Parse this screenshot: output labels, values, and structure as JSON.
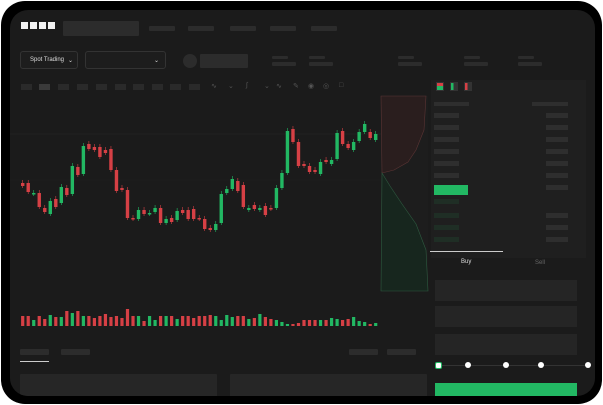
{
  "header": {
    "logo": "OKX"
  },
  "toolbar": {
    "market_select": "Spot Trading",
    "market_chevron": "chevron-down-icon",
    "pair_chevron": "chevron-down-icon"
  },
  "colors": {
    "up": "#22b863",
    "down": "#d64045",
    "background": "#1b1b1b"
  },
  "chart": {
    "candles": [
      [
        68,
        65
      ],
      [
        68,
        59
      ],
      [
        57,
        58
      ],
      [
        58,
        44
      ],
      [
        43,
        39
      ],
      [
        37,
        50
      ],
      [
        52,
        44
      ],
      [
        48,
        64
      ],
      [
        63,
        56
      ],
      [
        57,
        85
      ],
      [
        84,
        76
      ],
      [
        77,
        105
      ],
      [
        107,
        102
      ],
      [
        104,
        101
      ],
      [
        104,
        94
      ],
      [
        101,
        98
      ],
      [
        102,
        81
      ],
      [
        81,
        60
      ],
      [
        63,
        61
      ],
      [
        61,
        33
      ],
      [
        33,
        32
      ],
      [
        32,
        41
      ],
      [
        41,
        37
      ],
      [
        37,
        38
      ],
      [
        39,
        43
      ],
      [
        43,
        28
      ],
      [
        28,
        32
      ],
      [
        33,
        29
      ],
      [
        31,
        40
      ],
      [
        41,
        38
      ],
      [
        41,
        32
      ],
      [
        42,
        32
      ],
      [
        33,
        32
      ],
      [
        32,
        22
      ],
      [
        23,
        21
      ],
      [
        21,
        27
      ],
      [
        28,
        57
      ],
      [
        58,
        62
      ],
      [
        62,
        72
      ],
      [
        70,
        60
      ],
      [
        66,
        44
      ],
      [
        41,
        43
      ],
      [
        46,
        42
      ],
      [
        41,
        43
      ],
      [
        45,
        36
      ],
      [
        43,
        42
      ],
      [
        43,
        63
      ],
      [
        63,
        78
      ],
      [
        78,
        120
      ],
      [
        122,
        109
      ],
      [
        109,
        85
      ],
      [
        87,
        85
      ],
      [
        85,
        79
      ],
      [
        81,
        79
      ],
      [
        77,
        89
      ],
      [
        91,
        89
      ],
      [
        87,
        91
      ],
      [
        92,
        118
      ],
      [
        120,
        107
      ],
      [
        107,
        103
      ],
      [
        101,
        109
      ],
      [
        110,
        119
      ],
      [
        119,
        127
      ],
      [
        119,
        113
      ],
      [
        111,
        117
      ]
    ],
    "volumes": [
      10,
      10,
      6,
      10,
      7,
      11,
      9,
      9,
      15,
      13,
      15,
      10,
      10,
      8,
      10,
      12,
      9,
      10,
      8,
      17,
      10,
      10,
      5,
      10,
      6,
      10,
      10,
      10,
      7,
      10,
      10,
      8,
      10,
      10,
      11,
      10,
      6,
      11,
      9,
      10,
      10,
      7,
      8,
      12,
      9,
      7,
      6,
      4,
      2,
      2,
      3,
      6,
      6,
      6,
      6,
      6,
      8,
      7,
      6,
      7,
      9,
      5,
      4,
      2,
      3
    ]
  },
  "order_form": {
    "tabs": [
      "Buy",
      "Sell"
    ],
    "active_tab": "Buy",
    "slider_percent": 0,
    "slider_marks": [
      0,
      25,
      50,
      75,
      100
    ]
  }
}
